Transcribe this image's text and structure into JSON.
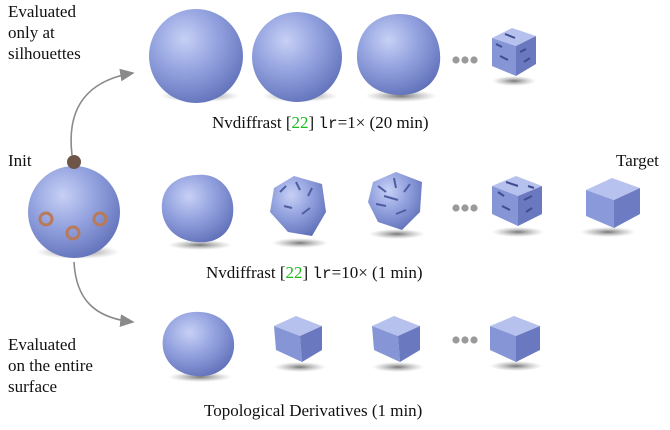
{
  "labels": {
    "left_top": [
      "Evaluated",
      "only at",
      "silhouettes"
    ],
    "init": "Init",
    "left_bottom": [
      "Evaluated",
      "on the entire",
      "surface"
    ],
    "target": "Target"
  },
  "captions": {
    "row1": {
      "method": "Nvdiffrast ",
      "bracket_open": "[",
      "ref": "22",
      "bracket_close": "]",
      "code": "lr",
      "rest": "=1× (20 min)"
    },
    "row2": {
      "method": "Nvdiffrast ",
      "bracket_open": "[",
      "ref": "22",
      "bracket_close": "]",
      "code": "lr",
      "rest": "=10× (1 min)"
    },
    "row3": "Topological Derivatives (1 min)"
  },
  "colors": {
    "shape": "#8f9fdb",
    "shape_dark": "#5d6db5",
    "shape_light": "#c3cdf3",
    "shadow": "#7b7b7b",
    "arrow": "#8a8a8a",
    "dot_fill": "#6e5548",
    "ring": "#b97a5a",
    "ellipsis": "#9a9a9a",
    "citation": "#1db91d"
  },
  "icons": {
    "arrow_up": "curved-arrow-icon",
    "arrow_down": "curved-arrow-icon",
    "ellipsis": "ellipsis-icon"
  }
}
